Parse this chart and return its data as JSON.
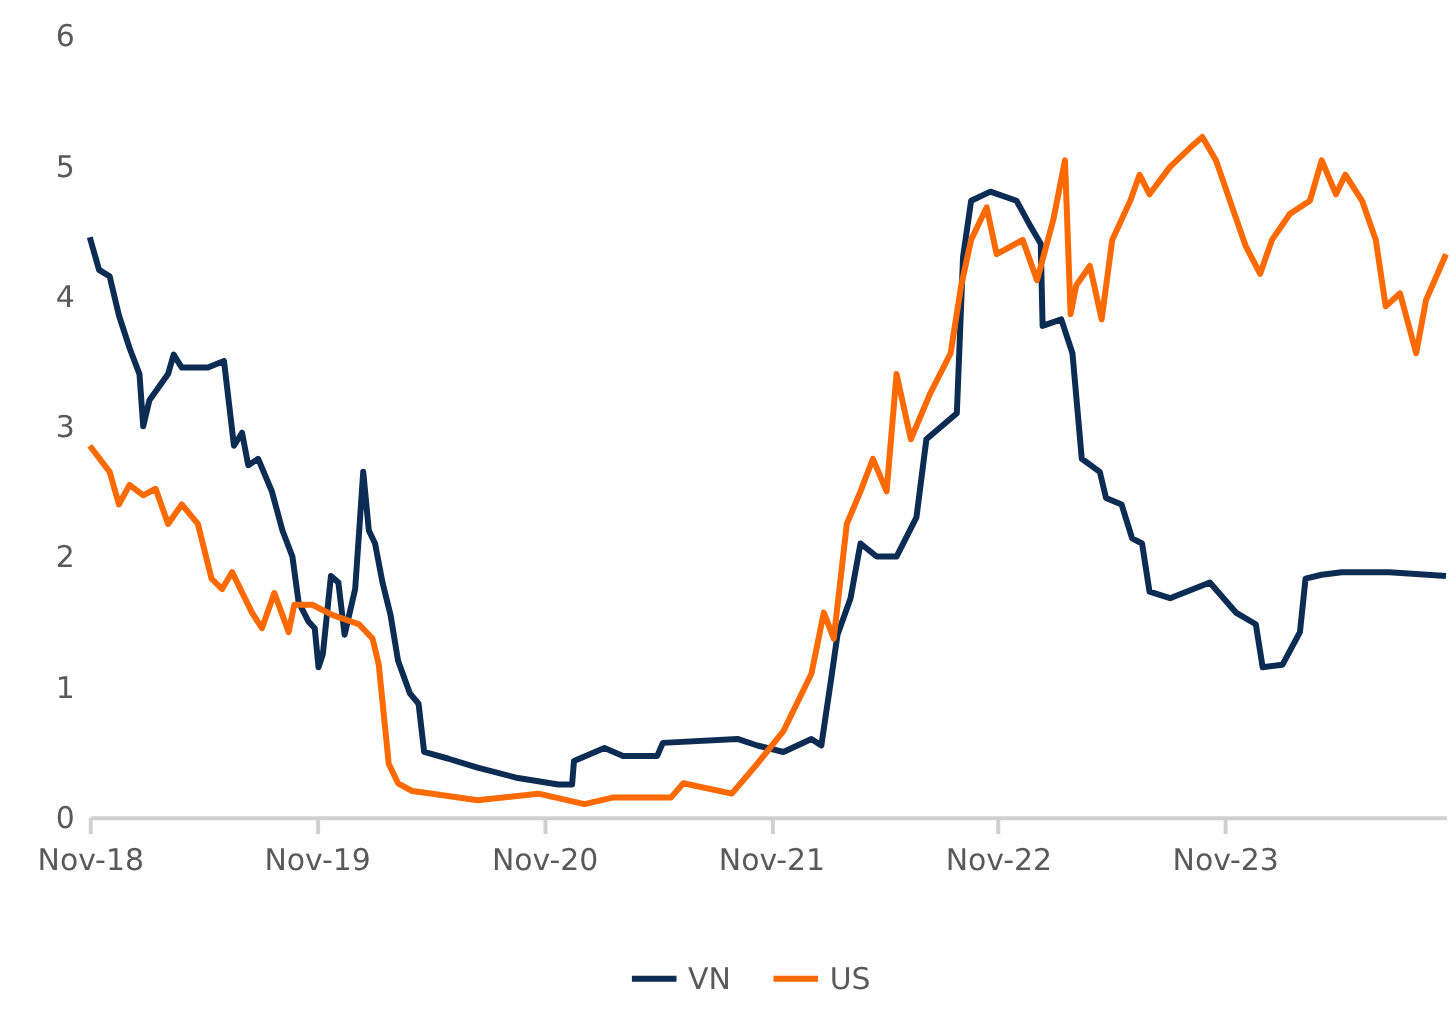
{
  "chart_data": {
    "type": "line",
    "xlim": [
      "2018-11-01",
      "2024-10-22"
    ],
    "ylim": [
      0,
      6
    ],
    "yticks": [
      0,
      1,
      2,
      3,
      4,
      5,
      6
    ],
    "xticks": [
      {
        "value": "2018-11-01",
        "label": "Nov-18"
      },
      {
        "value": "2019-11-01",
        "label": "Nov-19"
      },
      {
        "value": "2020-11-01",
        "label": "Nov-20"
      },
      {
        "value": "2021-11-01",
        "label": "Nov-21"
      },
      {
        "value": "2022-11-01",
        "label": "Nov-22"
      },
      {
        "value": "2023-11-01",
        "label": "Nov-23"
      }
    ],
    "grid": false,
    "legend": "bottom",
    "line_style": "solid",
    "marker": "none",
    "series": [
      {
        "name": "VN",
        "color": "#0d2c54",
        "x": [
          "2018-11-01",
          "2018-11-16",
          "2018-12-03",
          "2018-12-18",
          "2019-01-04",
          "2019-01-20",
          "2019-01-26",
          "2019-02-05",
          "2019-03-07",
          "2019-03-16",
          "2019-03-29",
          "2019-05-10",
          "2019-06-05",
          "2019-06-21",
          "2019-07-04",
          "2019-07-14",
          "2019-07-30",
          "2019-08-21",
          "2019-09-07",
          "2019-09-23",
          "2019-10-03",
          "2019-10-19",
          "2019-10-29",
          "2019-11-04",
          "2019-11-11",
          "2019-11-24",
          "2019-12-06",
          "2019-12-16",
          "2020-01-02",
          "2020-01-15",
          "2020-01-24",
          "2020-02-03",
          "2020-02-15",
          "2020-02-28",
          "2020-03-11",
          "2020-03-30",
          "2020-04-13",
          "2020-04-22",
          "2020-05-30",
          "2020-07-17",
          "2020-09-20",
          "2020-11-24",
          "2020-12-16",
          "2020-12-19",
          "2021-02-06",
          "2021-03-08",
          "2021-05-02",
          "2021-05-11",
          "2021-09-08",
          "2021-10-10",
          "2021-11-21",
          "2022-01-05",
          "2022-01-21",
          "2022-02-07",
          "2022-02-16",
          "2022-03-09",
          "2022-03-25",
          "2022-04-20",
          "2022-05-22",
          "2022-06-23",
          "2022-07-09",
          "2022-08-27",
          "2022-09-06",
          "2022-09-19",
          "2022-10-20",
          "2022-12-01",
          "2022-12-24",
          "2023-01-09",
          "2023-01-12",
          "2023-02-11",
          "2023-03-01",
          "2023-03-16",
          "2023-04-14",
          "2023-04-24",
          "2023-05-19",
          "2023-06-05",
          "2023-06-21",
          "2023-07-03",
          "2023-08-05",
          "2023-10-08",
          "2023-11-19",
          "2023-12-21",
          "2024-01-01",
          "2024-02-02",
          "2024-03-01",
          "2024-03-10",
          "2024-04-05",
          "2024-05-07",
          "2024-07-23",
          "2024-10-22"
        ],
        "values": [
          4.45,
          4.2,
          4.15,
          3.85,
          3.6,
          3.4,
          3.0,
          3.2,
          3.4,
          3.55,
          3.45,
          3.45,
          3.5,
          2.85,
          2.95,
          2.7,
          2.75,
          2.5,
          2.2,
          2.0,
          1.65,
          1.5,
          1.45,
          1.15,
          1.25,
          1.85,
          1.8,
          1.4,
          1.75,
          2.65,
          2.2,
          2.1,
          1.8,
          1.55,
          1.2,
          0.95,
          0.87,
          0.5,
          0.45,
          0.38,
          0.3,
          0.25,
          0.25,
          0.43,
          0.53,
          0.47,
          0.47,
          0.57,
          0.6,
          0.55,
          0.5,
          0.6,
          0.55,
          1.1,
          1.4,
          1.68,
          2.1,
          2.0,
          2.0,
          2.3,
          2.9,
          3.1,
          4.3,
          4.73,
          4.8,
          4.73,
          4.53,
          4.4,
          3.77,
          3.82,
          3.56,
          2.75,
          2.65,
          2.45,
          2.4,
          2.14,
          2.1,
          1.73,
          1.68,
          1.8,
          1.57,
          1.48,
          1.15,
          1.17,
          1.42,
          1.83,
          1.86,
          1.88,
          1.88,
          1.85
        ]
      },
      {
        "name": "US",
        "color": "#ff6a00",
        "x": [
          "2018-11-01",
          "2018-12-03",
          "2018-12-18",
          "2019-01-04",
          "2019-01-26",
          "2019-02-15",
          "2019-03-07",
          "2019-03-29",
          "2019-04-24",
          "2019-05-16",
          "2019-06-02",
          "2019-06-18",
          "2019-07-20",
          "2019-08-05",
          "2019-08-25",
          "2019-09-17",
          "2019-09-26",
          "2019-10-25",
          "2019-11-27",
          "2020-01-08",
          "2020-01-30",
          "2020-02-09",
          "2020-02-25",
          "2020-03-11",
          "2020-04-03",
          "2020-05-05",
          "2020-07-17",
          "2020-10-23",
          "2021-01-05",
          "2021-02-19",
          "2021-05-24",
          "2021-06-13",
          "2021-08-30",
          "2021-10-10",
          "2021-11-21",
          "2022-01-05",
          "2022-01-25",
          "2022-02-10",
          "2022-03-03",
          "2022-03-25",
          "2022-04-14",
          "2022-05-06",
          "2022-05-22",
          "2022-06-14",
          "2022-07-15",
          "2022-08-17",
          "2022-09-03",
          "2022-09-19",
          "2022-10-14",
          "2022-10-30",
          "2022-12-11",
          "2023-01-03",
          "2023-01-29",
          "2023-02-17",
          "2023-02-26",
          "2023-03-07",
          "2023-03-29",
          "2023-04-17",
          "2023-05-04",
          "2023-06-02",
          "2023-06-17",
          "2023-07-03",
          "2023-08-05",
          "2023-09-07",
          "2023-09-26",
          "2023-10-18",
          "2023-11-13",
          "2023-12-05",
          "2023-12-28",
          "2024-01-16",
          "2024-02-14",
          "2024-03-17",
          "2024-04-05",
          "2024-04-28",
          "2024-05-13",
          "2024-06-09",
          "2024-07-01",
          "2024-07-17",
          "2024-08-09",
          "2024-09-04",
          "2024-09-20",
          "2024-10-22"
        ],
        "values": [
          2.85,
          2.65,
          2.4,
          2.55,
          2.47,
          2.52,
          2.25,
          2.4,
          2.25,
          1.83,
          1.75,
          1.88,
          1.57,
          1.45,
          1.72,
          1.42,
          1.63,
          1.63,
          1.55,
          1.48,
          1.37,
          1.17,
          0.41,
          0.26,
          0.2,
          0.18,
          0.13,
          0.18,
          0.1,
          0.15,
          0.15,
          0.26,
          0.18,
          0.41,
          0.66,
          1.1,
          1.57,
          1.37,
          2.25,
          2.5,
          2.75,
          2.5,
          3.4,
          2.9,
          3.25,
          3.56,
          4.08,
          4.43,
          4.68,
          4.32,
          4.43,
          4.12,
          4.58,
          5.04,
          3.86,
          4.08,
          4.23,
          3.82,
          4.43,
          4.73,
          4.93,
          4.78,
          4.99,
          5.14,
          5.22,
          5.04,
          4.68,
          4.38,
          4.17,
          4.43,
          4.63,
          4.73,
          5.04,
          4.78,
          4.93,
          4.73,
          4.43,
          3.92,
          4.02,
          3.56,
          3.97,
          4.32
        ]
      }
    ]
  }
}
